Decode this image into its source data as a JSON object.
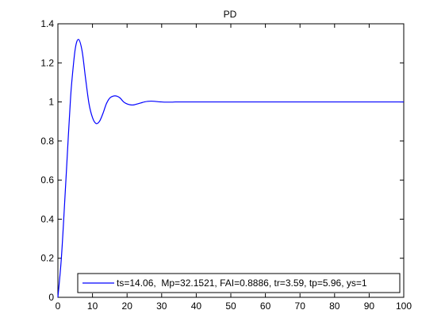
{
  "chart_data": {
    "type": "line",
    "title": "PD",
    "xlabel": "",
    "ylabel": "",
    "xlim": [
      0,
      100
    ],
    "ylim": [
      0,
      1.4
    ],
    "grid": false,
    "legend_position": "bottom-right",
    "x_ticks": [
      "0",
      "10",
      "20",
      "30",
      "40",
      "50",
      "60",
      "70",
      "80",
      "90",
      "100"
    ],
    "y_ticks": [
      "0",
      "0.2",
      "0.4",
      "0.6",
      "0.8",
      "1",
      "1.2",
      "1.4"
    ],
    "series": [
      {
        "name": "ts=14.06,  Mp=32.1521, FAI=0.8886, tr=3.59, tp=5.96, ys=1",
        "color": "#0000ff",
        "x": [
          0,
          1,
          2,
          3,
          3.59,
          4,
          5,
          5.96,
          7,
          8,
          9,
          10,
          11,
          12,
          13,
          14,
          15,
          16,
          17,
          18,
          19,
          20,
          21,
          22,
          23,
          24,
          25,
          26,
          27,
          28,
          29,
          30,
          31,
          32,
          33,
          34,
          35,
          36,
          37,
          38,
          40,
          45,
          50,
          60,
          70,
          80,
          90,
          100
        ],
        "y": [
          0,
          0.2,
          0.5,
          0.82,
          1.0,
          1.1,
          1.27,
          1.32,
          1.26,
          1.12,
          0.99,
          0.92,
          0.89,
          0.9,
          0.94,
          0.99,
          1.02,
          1.03,
          1.03,
          1.02,
          1.0,
          0.99,
          0.985,
          0.985,
          0.99,
          0.995,
          1.0,
          1.003,
          1.004,
          1.003,
          1.001,
          1.0,
          0.999,
          0.999,
          0.999,
          1.0,
          1.0,
          1.0,
          1.0,
          1.0,
          1.0,
          1.0,
          1.0,
          1.0,
          1.0,
          1.0,
          1.0,
          1.0
        ]
      }
    ]
  }
}
